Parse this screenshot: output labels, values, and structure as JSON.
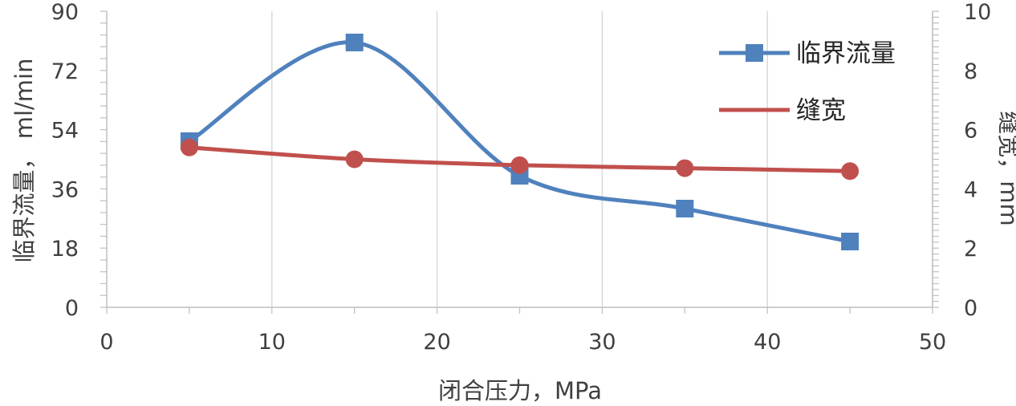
{
  "chart_data": {
    "type": "line",
    "xlabel": "闭合压力，MPa",
    "ylabel_left": "临界流量， ml/min",
    "ylabel_right": "缝宽，mm",
    "xlim": [
      0,
      50
    ],
    "ylim_left": [
      0,
      90
    ],
    "ylim_right": [
      0,
      10
    ],
    "x_ticks": [
      "0",
      "10",
      "20",
      "30",
      "40",
      "50"
    ],
    "y_left_ticks": [
      "0",
      "18",
      "36",
      "54",
      "72",
      "90"
    ],
    "y_right_ticks": [
      "0",
      "2",
      "4",
      "6",
      "8",
      "10"
    ],
    "grid": "vertical",
    "legend_position": "top-right",
    "series": [
      {
        "name": "临界流量",
        "axis": "left",
        "marker": "square",
        "color": "#4f81bd",
        "x": [
          5,
          15,
          25,
          35,
          45
        ],
        "values": [
          50.5,
          80.5,
          40,
          30,
          20
        ]
      },
      {
        "name": "缝宽",
        "axis": "right",
        "marker": "circle",
        "color": "#c0504d",
        "x": [
          5,
          15,
          25,
          35,
          45
        ],
        "values": [
          5.4,
          5.0,
          4.8,
          4.7,
          4.6
        ]
      }
    ]
  }
}
